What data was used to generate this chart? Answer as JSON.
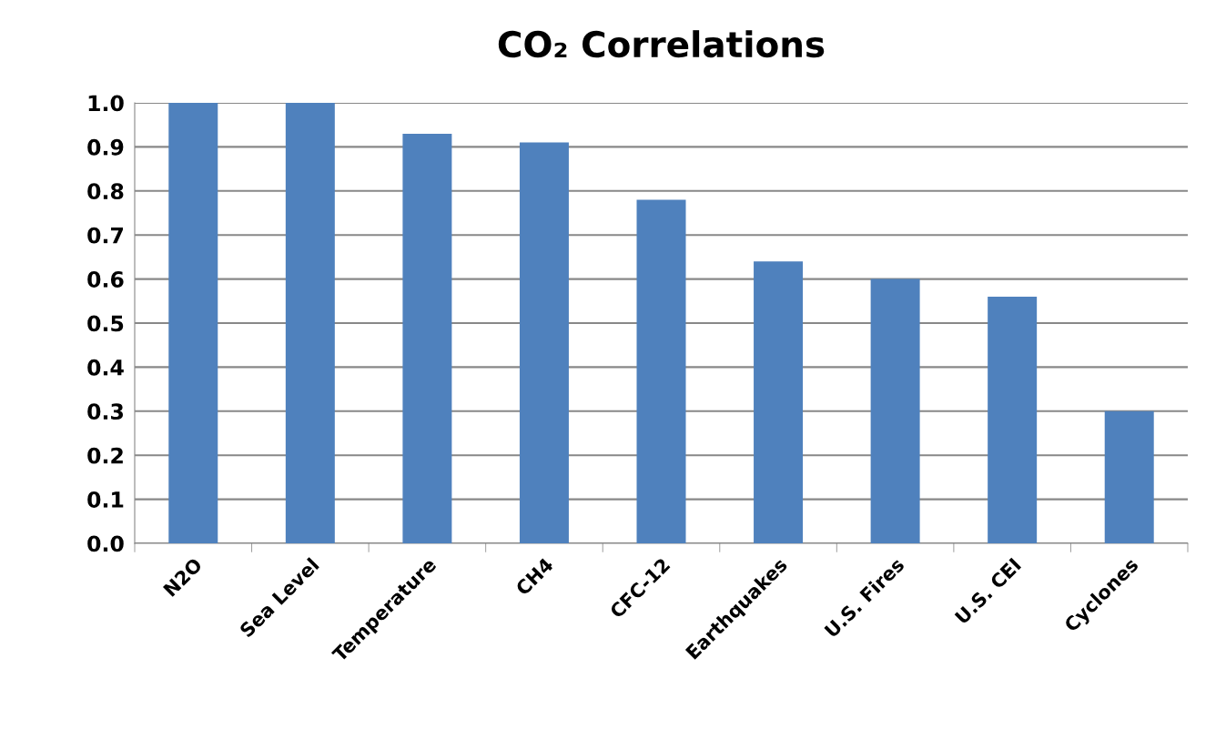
{
  "chart_data": {
    "type": "bar",
    "title": "CO₂ Correlations",
    "categories": [
      "N2O",
      "Sea Level",
      "Temperature",
      "CH4",
      "CFC-12",
      "Earthquakes",
      "U.S. Fires",
      "U.S. CEI",
      "Cyclones"
    ],
    "values": [
      1.0,
      1.0,
      0.93,
      0.91,
      0.78,
      0.64,
      0.6,
      0.56,
      0.3
    ],
    "color": "#4f81bd",
    "ylim": [
      0,
      1.0
    ],
    "yticks": [
      {
        "value": 0,
        "label": "0.0"
      },
      {
        "value": 0.1,
        "label": "0.1"
      },
      {
        "value": 0.2,
        "label": "0.2"
      },
      {
        "value": 0.3,
        "label": "0.3"
      },
      {
        "value": 0.4,
        "label": "0.4"
      },
      {
        "value": 0.5,
        "label": "0.5"
      },
      {
        "value": 0.6,
        "label": "0.6"
      },
      {
        "value": 0.7,
        "label": "0.7"
      },
      {
        "value": 0.8,
        "label": "0.8"
      },
      {
        "value": 0.9,
        "label": "0.9"
      },
      {
        "value": 1.0,
        "label": "1.0"
      }
    ],
    "grid": "y"
  }
}
